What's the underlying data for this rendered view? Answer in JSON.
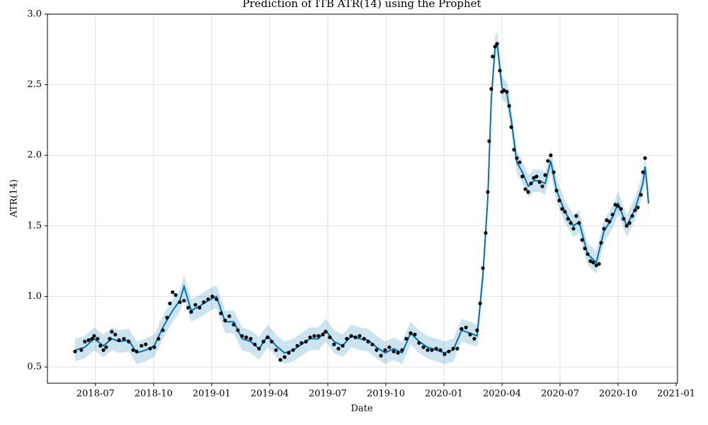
{
  "chart_data": {
    "type": "line",
    "title": "Prediction of ITB  ATR(14) using the Prophet",
    "xlabel": "Date",
    "ylabel": "ATR(14)",
    "grid": true,
    "xlim": [
      2018.293,
      2021.006
    ],
    "ylim": [
      0.385,
      3.0
    ],
    "xticks": [
      {
        "value": 2018.5,
        "label": "2018-07"
      },
      {
        "value": 2018.75,
        "label": "2018-10"
      },
      {
        "value": 2019.0,
        "label": "2019-01"
      },
      {
        "value": 2019.25,
        "label": "2019-04"
      },
      {
        "value": 2019.5,
        "label": "2019-07"
      },
      {
        "value": 2019.75,
        "label": "2019-10"
      },
      {
        "value": 2020.0,
        "label": "2020-01"
      },
      {
        "value": 2020.25,
        "label": "2020-04"
      },
      {
        "value": 2020.5,
        "label": "2020-07"
      },
      {
        "value": 2020.75,
        "label": "2020-10"
      },
      {
        "value": 2021.0,
        "label": "2021-01"
      }
    ],
    "yticks": [
      0.5,
      {
        "value": 1,
        "label": "1.0"
      },
      1.5,
      {
        "value": 2,
        "label": "2.0"
      },
      2.5,
      {
        "value": 3,
        "label": "3.0"
      }
    ],
    "series": [
      {
        "marker": "dot",
        "color": "#000000",
        "x": [
          2018.412,
          2018.439,
          2018.454,
          2018.47,
          2018.485,
          2018.494,
          2018.509,
          2018.521,
          2018.534,
          2018.546,
          2018.561,
          2018.57,
          2018.585,
          2018.601,
          2018.622,
          2018.643,
          2018.662,
          2018.677,
          2018.698,
          2018.716,
          2018.735,
          2018.753,
          2018.771,
          2018.79,
          2018.808,
          2018.82,
          2018.832,
          2018.845,
          2018.863,
          2018.881,
          2018.899,
          2018.912,
          2018.93,
          2018.948,
          2018.966,
          2018.985,
          2019.003,
          2019.021,
          2019.04,
          2019.058,
          2019.076,
          2019.095,
          2019.113,
          2019.131,
          2019.149,
          2019.168,
          2019.186,
          2019.204,
          2019.223,
          2019.241,
          2019.259,
          2019.277,
          2019.296,
          2019.314,
          2019.332,
          2019.351,
          2019.369,
          2019.387,
          2019.406,
          2019.424,
          2019.442,
          2019.46,
          2019.479,
          2019.491,
          2019.509,
          2019.527,
          2019.546,
          2019.564,
          2019.582,
          2019.601,
          2019.619,
          2019.637,
          2019.656,
          2019.674,
          2019.692,
          2019.71,
          2019.729,
          2019.747,
          2019.765,
          2019.784,
          2019.802,
          2019.82,
          2019.838,
          2019.857,
          2019.875,
          2019.893,
          2019.912,
          2019.93,
          2019.948,
          2019.967,
          2019.985,
          2020.003,
          2020.021,
          2020.04,
          2020.058,
          2020.076,
          2020.095,
          2020.113,
          2020.131,
          2020.143,
          2020.156,
          2020.168,
          2020.18,
          2020.189,
          2020.195,
          2020.204,
          2020.21,
          2020.22,
          2020.229,
          2020.241,
          2020.25,
          2020.259,
          2020.271,
          2020.281,
          2020.29,
          2020.302,
          2020.314,
          2020.326,
          2020.338,
          2020.351,
          2020.363,
          2020.375,
          2020.387,
          2020.399,
          2020.412,
          2020.424,
          2020.436,
          2020.448,
          2020.46,
          2020.473,
          2020.485,
          2020.497,
          2020.509,
          2020.521,
          2020.534,
          2020.546,
          2020.558,
          2020.57,
          2020.582,
          2020.595,
          2020.607,
          2020.619,
          2020.631,
          2020.643,
          2020.656,
          2020.668,
          2020.677,
          2020.689,
          2020.701,
          2020.713,
          2020.726,
          2020.738,
          2020.75,
          2020.762,
          2020.774,
          2020.787,
          2020.799,
          2020.811,
          2020.823,
          2020.835,
          2020.848,
          2020.857,
          2020.866
        ],
        "values": [
          0.61,
          0.62,
          0.68,
          0.69,
          0.7,
          0.72,
          0.7,
          0.65,
          0.62,
          0.64,
          0.7,
          0.75,
          0.73,
          0.69,
          0.7,
          0.68,
          0.62,
          0.61,
          0.65,
          0.66,
          0.63,
          0.64,
          0.7,
          0.76,
          0.85,
          0.95,
          1.03,
          1.01,
          0.96,
          0.97,
          0.92,
          0.89,
          0.94,
          0.92,
          0.96,
          0.98,
          1.0,
          0.98,
          0.88,
          0.83,
          0.86,
          0.8,
          0.76,
          0.72,
          0.71,
          0.7,
          0.66,
          0.63,
          0.68,
          0.71,
          0.68,
          0.62,
          0.55,
          0.57,
          0.6,
          0.62,
          0.65,
          0.67,
          0.68,
          0.71,
          0.72,
          0.72,
          0.73,
          0.75,
          0.71,
          0.66,
          0.63,
          0.65,
          0.7,
          0.72,
          0.71,
          0.72,
          0.7,
          0.68,
          0.66,
          0.62,
          0.58,
          0.62,
          0.64,
          0.61,
          0.6,
          0.62,
          0.7,
          0.74,
          0.73,
          0.67,
          0.64,
          0.62,
          0.62,
          0.63,
          0.62,
          0.59,
          0.61,
          0.63,
          0.63,
          0.77,
          0.78,
          0.73,
          0.7,
          0.76,
          0.95,
          1.2,
          1.45,
          1.74,
          2.1,
          2.47,
          2.7,
          2.77,
          2.79,
          2.6,
          2.45,
          2.46,
          2.45,
          2.35,
          2.2,
          2.04,
          1.98,
          1.95,
          1.85,
          1.76,
          1.74,
          1.8,
          1.84,
          1.85,
          1.81,
          1.78,
          1.86,
          1.96,
          2.0,
          1.88,
          1.75,
          1.68,
          1.62,
          1.6,
          1.55,
          1.52,
          1.48,
          1.57,
          1.52,
          1.4,
          1.34,
          1.3,
          1.25,
          1.24,
          1.22,
          1.23,
          1.38,
          1.48,
          1.54,
          1.53,
          1.58,
          1.65,
          1.64,
          1.62,
          1.55,
          1.5,
          1.52,
          1.57,
          1.61,
          1.63,
          1.72,
          1.88,
          1.98
        ]
      },
      {
        "marker": "line",
        "color": "#0072B2",
        "band_color": "#0072B2",
        "x": [
          2018.412,
          2018.454,
          2018.494,
          2018.534,
          2018.57,
          2018.601,
          2018.643,
          2018.677,
          2018.716,
          2018.753,
          2018.79,
          2018.832,
          2018.863,
          2018.881,
          2018.912,
          2018.948,
          2018.985,
          2019.021,
          2019.058,
          2019.095,
          2019.131,
          2019.168,
          2019.204,
          2019.241,
          2019.277,
          2019.314,
          2019.351,
          2019.387,
          2019.424,
          2019.46,
          2019.491,
          2019.527,
          2019.564,
          2019.601,
          2019.637,
          2019.674,
          2019.71,
          2019.747,
          2019.784,
          2019.82,
          2019.857,
          2019.893,
          2019.93,
          2019.967,
          2020.003,
          2020.04,
          2020.076,
          2020.113,
          2020.143,
          2020.168,
          2020.189,
          2020.204,
          2020.22,
          2020.229,
          2020.25,
          2020.271,
          2020.29,
          2020.314,
          2020.338,
          2020.363,
          2020.387,
          2020.412,
          2020.436,
          2020.46,
          2020.485,
          2020.521,
          2020.558,
          2020.582,
          2020.619,
          2020.656,
          2020.689,
          2020.726,
          2020.75,
          2020.787,
          2020.823,
          2020.857,
          2020.866,
          2020.875,
          2020.881
        ],
        "values": [
          0.62,
          0.64,
          0.7,
          0.65,
          0.7,
          0.68,
          0.69,
          0.6,
          0.62,
          0.65,
          0.78,
          0.9,
          0.97,
          1.07,
          0.9,
          0.93,
          0.97,
          1.0,
          0.82,
          0.82,
          0.7,
          0.68,
          0.63,
          0.72,
          0.65,
          0.6,
          0.62,
          0.66,
          0.7,
          0.7,
          0.76,
          0.68,
          0.65,
          0.72,
          0.7,
          0.69,
          0.64,
          0.6,
          0.63,
          0.6,
          0.74,
          0.68,
          0.64,
          0.62,
          0.6,
          0.62,
          0.76,
          0.74,
          0.72,
          1.15,
          1.7,
          2.4,
          2.76,
          2.8,
          2.48,
          2.44,
          2.25,
          1.95,
          1.88,
          1.78,
          1.82,
          1.82,
          1.8,
          1.96,
          1.75,
          1.6,
          1.5,
          1.53,
          1.3,
          1.24,
          1.46,
          1.56,
          1.66,
          1.5,
          1.62,
          1.8,
          1.92,
          1.78,
          1.66
        ],
        "lower": [
          0.54,
          0.56,
          0.62,
          0.57,
          0.62,
          0.6,
          0.61,
          0.52,
          0.54,
          0.57,
          0.7,
          0.82,
          0.89,
          0.99,
          0.82,
          0.85,
          0.89,
          0.92,
          0.74,
          0.74,
          0.62,
          0.6,
          0.55,
          0.64,
          0.57,
          0.52,
          0.54,
          0.58,
          0.62,
          0.62,
          0.68,
          0.6,
          0.57,
          0.64,
          0.62,
          0.61,
          0.56,
          0.52,
          0.55,
          0.52,
          0.66,
          0.6,
          0.56,
          0.54,
          0.52,
          0.54,
          0.68,
          0.66,
          0.64,
          1.07,
          1.62,
          2.32,
          2.68,
          2.72,
          2.4,
          2.36,
          2.17,
          1.87,
          1.8,
          1.7,
          1.74,
          1.74,
          1.72,
          1.88,
          1.67,
          1.52,
          1.42,
          1.45,
          1.22,
          1.16,
          1.38,
          1.48,
          1.58,
          1.42,
          1.54,
          1.72,
          1.84,
          1.7,
          1.58
        ],
        "upper": [
          0.7,
          0.72,
          0.78,
          0.73,
          0.78,
          0.76,
          0.77,
          0.68,
          0.7,
          0.73,
          0.86,
          0.98,
          1.05,
          1.15,
          0.98,
          1.01,
          1.05,
          1.08,
          0.9,
          0.9,
          0.78,
          0.76,
          0.71,
          0.8,
          0.73,
          0.68,
          0.7,
          0.74,
          0.78,
          0.78,
          0.84,
          0.76,
          0.73,
          0.8,
          0.78,
          0.77,
          0.72,
          0.68,
          0.71,
          0.68,
          0.82,
          0.76,
          0.72,
          0.7,
          0.68,
          0.7,
          0.84,
          0.82,
          0.8,
          1.23,
          1.78,
          2.48,
          2.84,
          2.88,
          2.56,
          2.52,
          2.33,
          2.03,
          1.96,
          1.86,
          1.9,
          1.9,
          1.88,
          2.04,
          1.83,
          1.68,
          1.58,
          1.61,
          1.38,
          1.32,
          1.54,
          1.64,
          1.74,
          1.58,
          1.7,
          1.88,
          2.0,
          1.86,
          1.74
        ]
      }
    ]
  }
}
